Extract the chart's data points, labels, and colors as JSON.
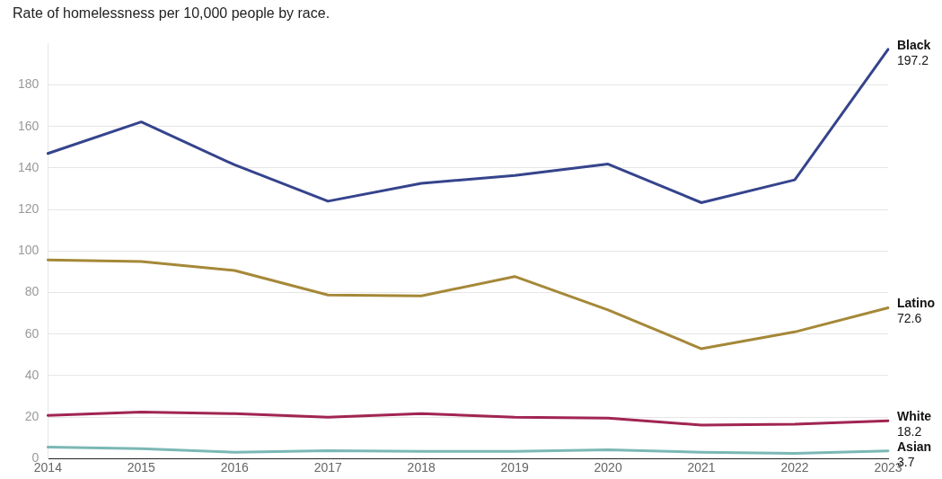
{
  "chart_data": {
    "type": "line",
    "title": "Rate of homelessness per 10,000 people by race.",
    "categories": [
      "2014",
      "2015",
      "2016",
      "2017",
      "2018",
      "2019",
      "2020",
      "2021",
      "2022",
      "2023"
    ],
    "series": [
      {
        "name": "Black",
        "color": "#35448c",
        "values": [
          147,
          162.2,
          141.5,
          124,
          132.6,
          136.4,
          141.9,
          123.3,
          134.3,
          197.2
        ],
        "value_labels": [
          null,
          null,
          null,
          null,
          null,
          null,
          null,
          null,
          null,
          "197.2"
        ]
      },
      {
        "name": "Latino",
        "color": "#a58838",
        "values": [
          95.7,
          94.9,
          90.6,
          78.8,
          78.4,
          87.7,
          71.6,
          52.9,
          61,
          72.6
        ],
        "value_labels": [
          null,
          null,
          null,
          null,
          null,
          null,
          null,
          null,
          null,
          "72.6"
        ]
      },
      {
        "name": "White",
        "color": "#a12552",
        "values": [
          20.8,
          22.4,
          21.6,
          19.9,
          21.6,
          19.9,
          19.5,
          16.1,
          16.5,
          18.2
        ],
        "value_labels": [
          null,
          null,
          null,
          null,
          null,
          null,
          null,
          null,
          null,
          "18.2"
        ]
      },
      {
        "name": "Asian",
        "color": "#7bb8b5",
        "values": [
          5.5,
          4.7,
          3,
          3.8,
          3.4,
          3.4,
          4.2,
          3,
          2.5,
          3.7
        ],
        "value_labels": [
          null,
          null,
          null,
          null,
          null,
          null,
          null,
          null,
          null,
          "3.7"
        ]
      }
    ],
    "ylim": [
      0,
      200
    ],
    "yticks": [
      0,
      20,
      40,
      60,
      80,
      100,
      120,
      140,
      160,
      180
    ],
    "grid": "y",
    "legend": false,
    "marker": "none",
    "line_style": "solid"
  }
}
